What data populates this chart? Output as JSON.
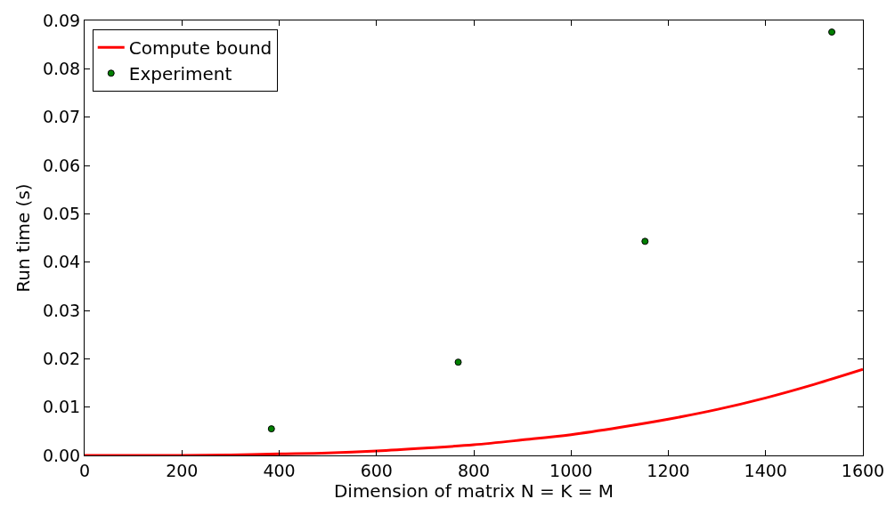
{
  "chart_data": {
    "type": "line",
    "xlabel": "Dimension of matrix N = K = M",
    "ylabel": "Run time (s)",
    "xlim": [
      0,
      1600
    ],
    "xticks": [
      0,
      200,
      400,
      600,
      800,
      1000,
      1200,
      1400,
      1600
    ],
    "ylim": [
      0,
      0.09
    ],
    "yticks": [
      {
        "value": 0,
        "label": "0.00"
      },
      {
        "value": 0.01,
        "label": "0.01"
      },
      {
        "value": 0.02,
        "label": "0.02"
      },
      {
        "value": 0.03,
        "label": "0.03"
      },
      {
        "value": 0.04,
        "label": "0.04"
      },
      {
        "value": 0.05,
        "label": "0.05"
      },
      {
        "value": 0.06,
        "label": "0.06"
      },
      {
        "value": 0.07,
        "label": "0.07"
      },
      {
        "value": 0.08,
        "label": "0.08"
      },
      {
        "value": 0.09,
        "label": "0.09"
      }
    ],
    "legend": "top left",
    "series": [
      {
        "name": "Compute bound",
        "color": "#ff0000",
        "marker": "none",
        "line_style": "solid",
        "x": [
          0,
          100,
          200,
          300,
          400,
          500,
          600,
          700,
          800,
          900,
          1000,
          1100,
          1200,
          1300,
          1400,
          1500,
          1600
        ],
        "values": [
          0,
          0,
          0,
          0.0001,
          0.0003,
          0.0005,
          0.0009,
          0.0015,
          0.0022,
          0.0032,
          0.0043,
          0.0058,
          0.0075,
          0.0095,
          0.0119,
          0.0147,
          0.0178
        ]
      },
      {
        "name": "Experiment",
        "type": "scatter",
        "color": "#008000",
        "marker": "circle",
        "x": [
          384,
          768,
          1152,
          1536
        ],
        "values": [
          0.0055,
          0.0193,
          0.0443,
          0.0876
        ]
      }
    ]
  }
}
